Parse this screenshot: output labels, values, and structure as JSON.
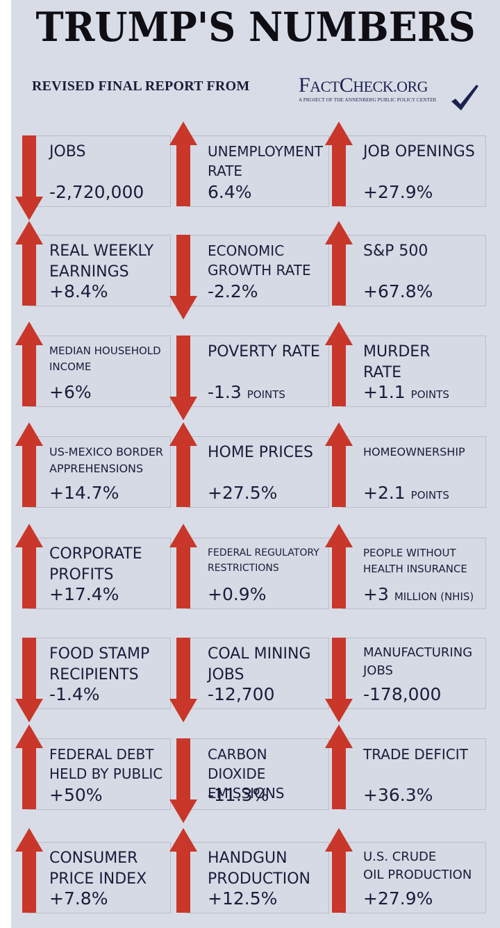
{
  "header": {
    "title": "TRUMP'S NUMBERS",
    "subtitle": "REVISED FINAL REPORT  FROM",
    "logo": {
      "name_big_1": "F",
      "name_small_1": "ACT",
      "name_big_2": "C",
      "name_small_2": "HECK.ORG",
      "tagline": "A PROJECT OF THE ANNENBERG PUBLIC POLICY CENTER",
      "icon": "checkmark-icon"
    }
  },
  "colors": {
    "background": "#d8dce6",
    "card": "#d6dae4",
    "arrow": "#c8372a",
    "text": "#1a1c3a"
  },
  "stats": [
    {
      "label": "JOBS",
      "value": "-2,720,000",
      "unit": "",
      "direction": "down"
    },
    {
      "label": "UNEMPLOYMENT\nRATE",
      "value": "6.4%",
      "unit": "",
      "direction": "up"
    },
    {
      "label": "JOB OPENINGS",
      "value": "+27.9%",
      "unit": "",
      "direction": "up"
    },
    {
      "label": "REAL WEEKLY\nEARNINGS",
      "value": "+8.4%",
      "unit": "",
      "direction": "up"
    },
    {
      "label": "ECONOMIC\nGROWTH RATE",
      "value": "-2.2%",
      "unit": "",
      "direction": "down"
    },
    {
      "label": "S&P 500",
      "value": "+67.8%",
      "unit": "",
      "direction": "up"
    },
    {
      "label": "MEDIAN HOUSEHOLD\nINCOME",
      "value": "+6%",
      "unit": "",
      "direction": "up"
    },
    {
      "label": "POVERTY RATE",
      "value": "-1.3",
      "unit": "POINTS",
      "direction": "down"
    },
    {
      "label": "MURDER\nRATE",
      "value": "+1.1",
      "unit": "POINTS",
      "direction": "up"
    },
    {
      "label": "US-MEXICO BORDER\nAPPREHENSIONS",
      "value": "+14.7%",
      "unit": "",
      "direction": "up"
    },
    {
      "label": "HOME PRICES",
      "value": "+27.5%",
      "unit": "",
      "direction": "up"
    },
    {
      "label": "HOMEOWNERSHIP",
      "value": "+2.1",
      "unit": "POINTS",
      "direction": "up"
    },
    {
      "label": "CORPORATE\nPROFITS",
      "value": "+17.4%",
      "unit": "",
      "direction": "up"
    },
    {
      "label": "FEDERAL REGULATORY\nRESTRICTIONS",
      "value": "+0.9%",
      "unit": "",
      "direction": "up"
    },
    {
      "label": "PEOPLE WITHOUT\nHEALTH INSURANCE",
      "value": "+3",
      "unit": "MILLION (NHIS)",
      "direction": "up"
    },
    {
      "label": "FOOD STAMP\nRECIPIENTS",
      "value": "-1.4%",
      "unit": "",
      "direction": "down"
    },
    {
      "label": "COAL MINING\nJOBS",
      "value": "-12,700",
      "unit": "",
      "direction": "down"
    },
    {
      "label": "MANUFACTURING\nJOBS",
      "value": "-178,000",
      "unit": "",
      "direction": "down"
    },
    {
      "label": "FEDERAL DEBT\nHELD BY PUBLIC",
      "value": "+50%",
      "unit": "",
      "direction": "up"
    },
    {
      "label": "CARBON DIOXIDE\nEMISSIONS",
      "value": "-11.3%",
      "unit": "",
      "direction": "down"
    },
    {
      "label": "TRADE DEFICIT",
      "value": "+36.3%",
      "unit": "",
      "direction": "up"
    },
    {
      "label": "CONSUMER\nPRICE INDEX",
      "value": "+7.8%",
      "unit": "",
      "direction": "up"
    },
    {
      "label": "HANDGUN\nPRODUCTION",
      "value": "+12.5%",
      "unit": "",
      "direction": "up"
    },
    {
      "label": "U.S. CRUDE\nOIL PRODUCTION",
      "value": "+27.9%",
      "unit": "",
      "direction": "up"
    }
  ]
}
